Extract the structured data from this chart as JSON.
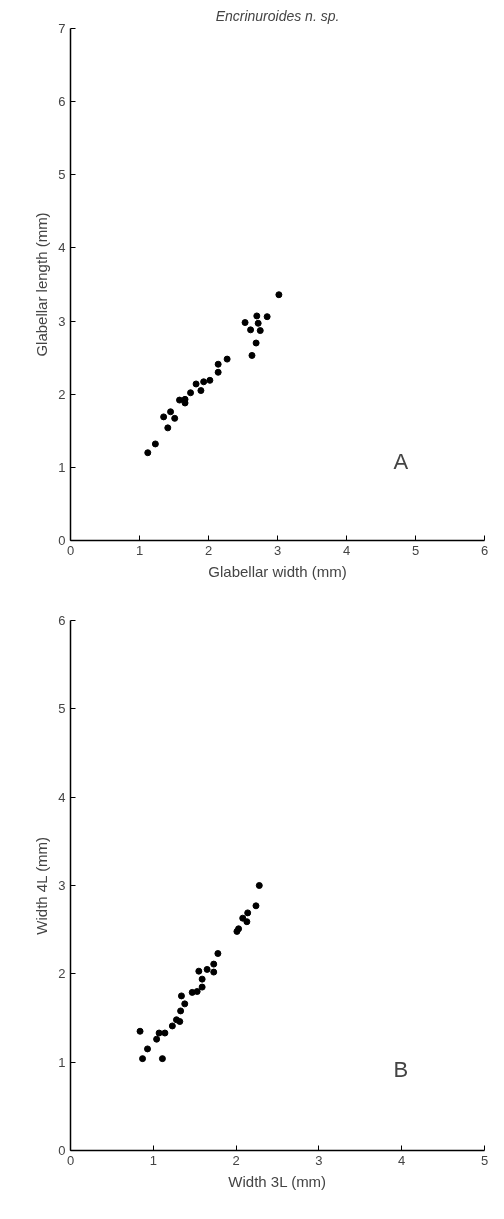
{
  "chart_data": [
    {
      "type": "scatter",
      "title": "Encrinuroides n. sp.",
      "xlabel": "Glabellar width (mm)",
      "ylabel": "Glabellar length (mm)",
      "annotations": [
        "A"
      ],
      "marker": "circle",
      "grid": false,
      "xlim": [
        0,
        6
      ],
      "ylim": [
        0,
        7
      ],
      "xticks": [
        0,
        1,
        2,
        3,
        4,
        5,
        6
      ],
      "yticks": [
        0,
        1,
        2,
        3,
        4,
        5,
        6,
        7
      ],
      "series": [
        {
          "color": "#000000",
          "x": [
            1.12,
            1.23,
            1.35,
            1.45,
            1.51,
            1.41,
            1.58,
            1.66,
            1.66,
            1.74,
            1.82,
            1.89,
            1.93,
            2.02,
            2.14,
            2.14,
            2.27,
            2.53,
            2.61,
            2.7,
            2.72,
            2.75,
            2.69,
            2.63,
            2.85,
            3.02
          ],
          "values": [
            1.2,
            1.32,
            1.69,
            1.76,
            1.67,
            1.54,
            1.92,
            1.93,
            1.88,
            2.02,
            2.14,
            2.05,
            2.17,
            2.19,
            2.41,
            2.3,
            2.48,
            2.98,
            2.88,
            3.07,
            2.97,
            2.87,
            2.7,
            2.53,
            3.06,
            3.36
          ]
        }
      ]
    },
    {
      "type": "scatter",
      "xlabel": "Width 3L (mm)",
      "ylabel": "Width 4L (mm)",
      "annotations": [
        "B"
      ],
      "marker": "circle",
      "grid": false,
      "xlim": [
        0,
        5
      ],
      "ylim": [
        0,
        6
      ],
      "xticks": [
        0,
        1,
        2,
        3,
        4,
        5
      ],
      "yticks": [
        0,
        1,
        2,
        3,
        4,
        5,
        6
      ],
      "series": [
        {
          "color": "#000000",
          "x": [
            0.87,
            0.93,
            0.84,
            1.04,
            1.07,
            1.14,
            1.23,
            1.28,
            1.32,
            1.33,
            1.38,
            1.34,
            1.47,
            1.53,
            1.59,
            1.59,
            1.55,
            1.65,
            1.73,
            1.73,
            1.78,
            2.01,
            2.03,
            2.08,
            2.13,
            2.14,
            2.24,
            2.28,
            1.11
          ],
          "values": [
            1.04,
            1.15,
            1.35,
            1.26,
            1.33,
            1.33,
            1.41,
            1.48,
            1.46,
            1.58,
            1.66,
            1.75,
            1.79,
            1.8,
            1.85,
            1.94,
            2.03,
            2.05,
            2.02,
            2.11,
            2.23,
            2.48,
            2.51,
            2.63,
            2.59,
            2.69,
            2.77,
            3.0,
            1.04
          ]
        }
      ]
    }
  ]
}
